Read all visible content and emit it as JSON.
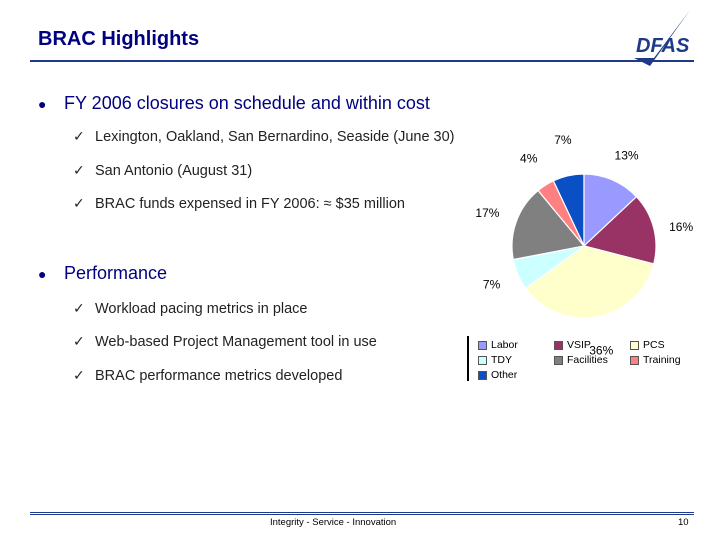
{
  "header": {
    "title": "BRAC Highlights",
    "logo_text": "DFAS"
  },
  "bullets": [
    {
      "text": "FY 2006 closures on schedule and within cost",
      "subs": [
        "Lexington, Oakland, San Bernardino, Seaside (June 30)",
        "San Antonio (August 31)",
        "BRAC funds expensed in FY 2006:  ≈ $35 million"
      ]
    },
    {
      "text": "Performance",
      "subs": [
        "Workload pacing metrics in place",
        "Web-based Project Management tool in use",
        "BRAC performance metrics developed"
      ]
    }
  ],
  "chart_data": {
    "type": "pie",
    "title": "",
    "series": [
      {
        "name": "Other",
        "label": "7%",
        "value": 7,
        "color": "#0a4fc4"
      },
      {
        "name": "Labor",
        "label": "13%",
        "value": 13,
        "color": "#9999ff"
      },
      {
        "name": "VSIP",
        "label": "16%",
        "value": 16,
        "color": "#993366"
      },
      {
        "name": "PCS",
        "label": "36%",
        "value": 36,
        "color": "#ffffcc"
      },
      {
        "name": "TDY",
        "label": "7%",
        "value": 7,
        "color": "#ccffff"
      },
      {
        "name": "Facilities",
        "label": "17%",
        "value": 17,
        "color": "#808080"
      },
      {
        "name": "Training",
        "label": "4%",
        "value": 4,
        "color": "#ff8080"
      }
    ],
    "legend": [
      "Labor",
      "VSIP",
      "PCS",
      "TDY",
      "Facilities",
      "Training",
      "Other"
    ],
    "legend_position": "bottom"
  },
  "footer": {
    "text": "Integrity - Service - Innovation",
    "page": "10"
  },
  "colors": {
    "title": "#000080",
    "rule": "#1f3a8a"
  }
}
